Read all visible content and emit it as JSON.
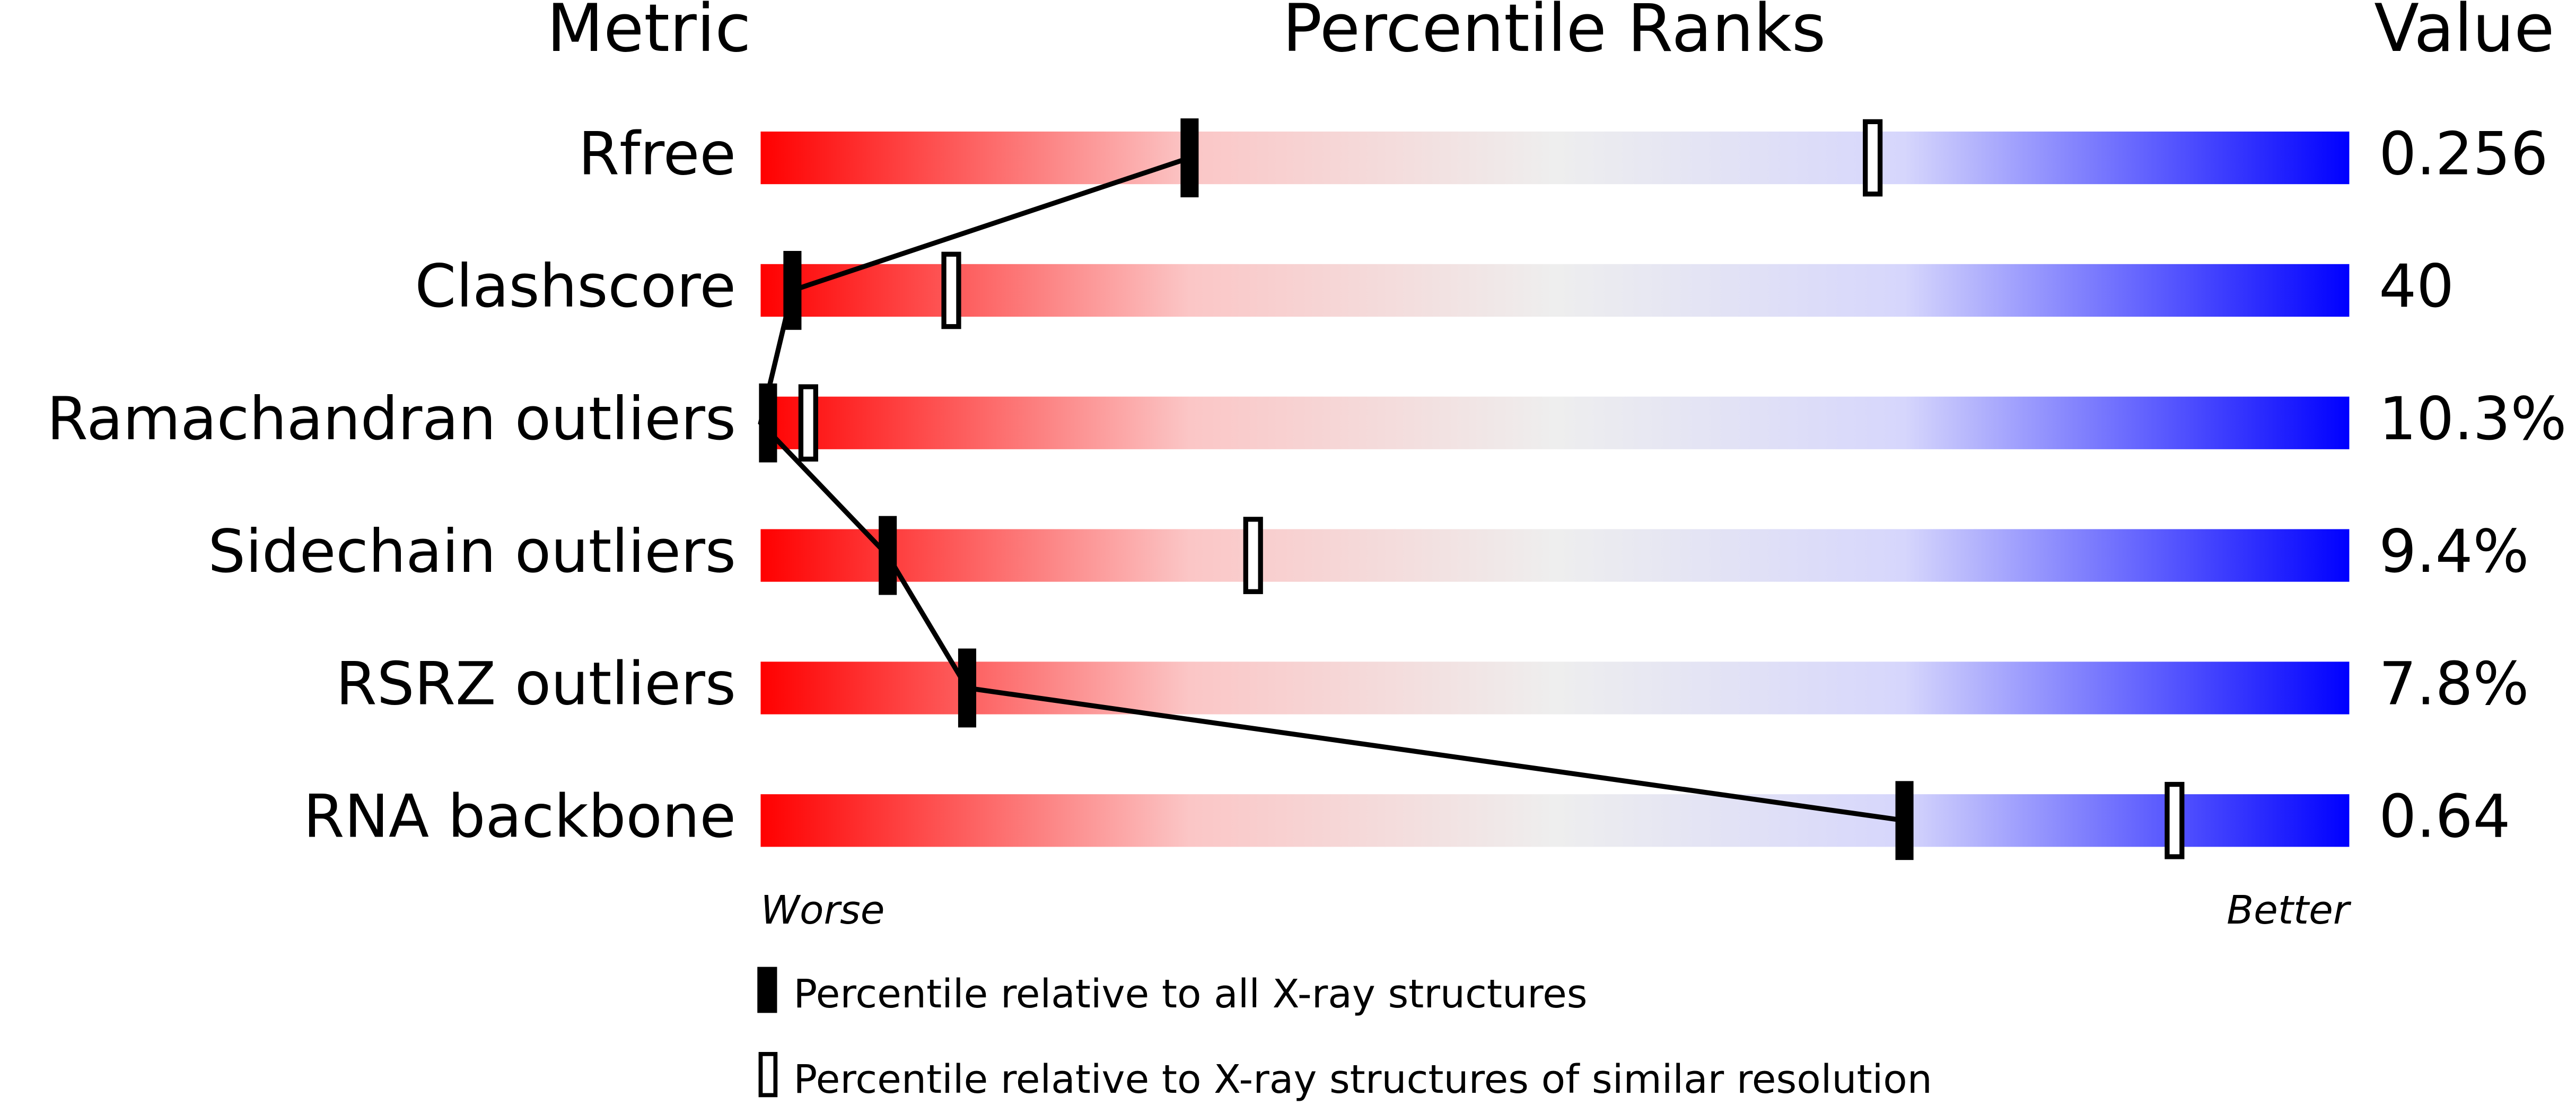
{
  "chart_data": {
    "type": "percentile",
    "headers": [
      "Metric",
      "Percentile Ranks",
      "Value"
    ],
    "categories": [
      "Rfree",
      "Clashscore",
      "Ramachandran outliers",
      "Sidechain outliers",
      "RSRZ outliers",
      "RNA backbone"
    ],
    "values": [
      0.256,
      40,
      10.3,
      9.4,
      7.8,
      0.64
    ],
    "value_labels": [
      "0.256",
      "40",
      "10.3%",
      "9.4%",
      "7.8%",
      "0.64"
    ],
    "series": [
      {
        "name": "Percentile relative to all X-ray structures",
        "color": "#000000",
        "values": [
          27,
          2,
          0,
          8,
          13,
          72
        ]
      },
      {
        "name": "Percentile relative to X-ray structures of similar resolution",
        "color": "#000000",
        "values": [
          70,
          12,
          3,
          31,
          null,
          89
        ]
      }
    ],
    "xlim": [
      0,
      100
    ],
    "x_low_label": "Worse",
    "x_high_label": "Better"
  }
}
